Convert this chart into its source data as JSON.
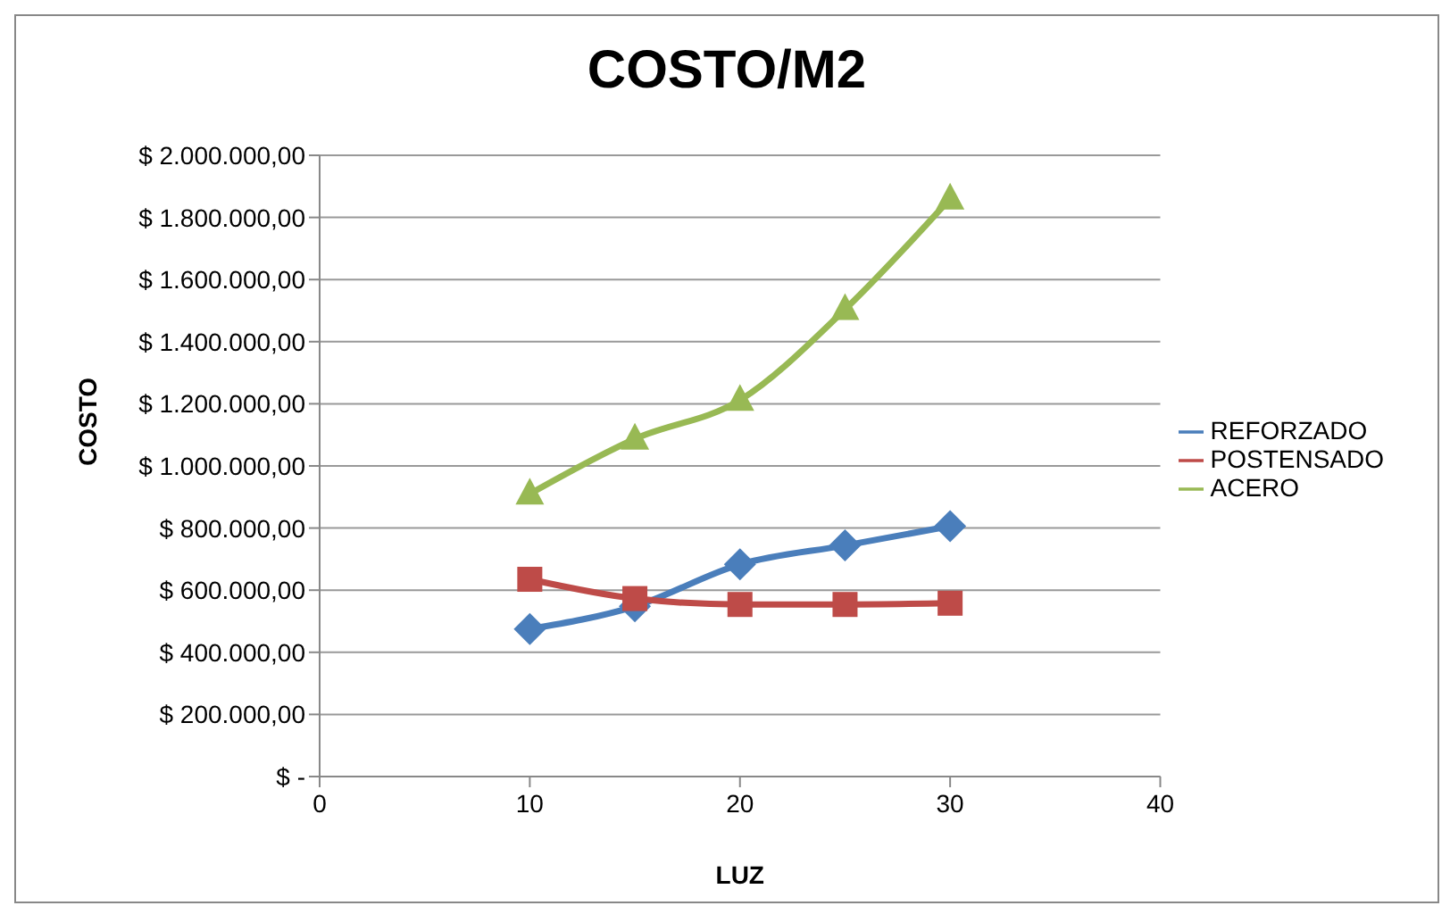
{
  "chart_data": {
    "type": "line",
    "title": "COSTO/M2",
    "xlabel": "LUZ",
    "ylabel": "COSTO",
    "x": [
      10,
      15,
      20,
      25,
      30
    ],
    "series": [
      {
        "name": "REFORZADO",
        "color": "#4a7ebb",
        "values": [
          475000,
          548000,
          683000,
          744000,
          806000
        ],
        "marker": "diamond"
      },
      {
        "name": "POSTENSADO",
        "color": "#be4b48",
        "values": [
          635000,
          573000,
          554000,
          554000,
          558000
        ],
        "marker": "square"
      },
      {
        "name": "ACERO",
        "color": "#98b954",
        "values": [
          910000,
          1087000,
          1212000,
          1504000,
          1860000
        ],
        "marker": "triangle"
      }
    ],
    "xlim": [
      0,
      40
    ],
    "xticks": [
      0,
      10,
      20,
      30,
      40
    ],
    "ylim": [
      0,
      2000000
    ],
    "yticks": [
      {
        "value": 0,
        "label": "$ -"
      },
      {
        "value": 200000,
        "label": "$ 200.000,00"
      },
      {
        "value": 400000,
        "label": "$ 400.000,00"
      },
      {
        "value": 600000,
        "label": "$ 600.000,00"
      },
      {
        "value": 800000,
        "label": "$ 800.000,00"
      },
      {
        "value": 1000000,
        "label": "$ 1.000.000,00"
      },
      {
        "value": 1200000,
        "label": "$ 1.200.000,00"
      },
      {
        "value": 1400000,
        "label": "$ 1.400.000,00"
      },
      {
        "value": 1600000,
        "label": "$ 1.600.000,00"
      },
      {
        "value": 1800000,
        "label": "$ 1.800.000,00"
      },
      {
        "value": 2000000,
        "label": "$ 2.000.000,00"
      }
    ],
    "grid": "y",
    "legend": "right",
    "line_style": "solid"
  }
}
